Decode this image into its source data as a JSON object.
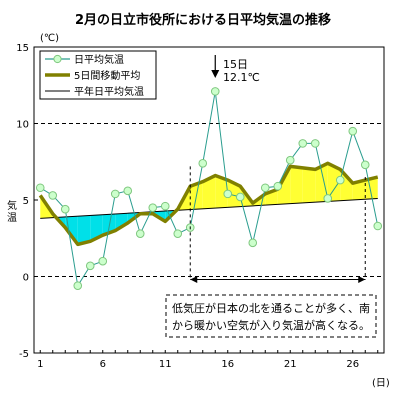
{
  "chart_data": {
    "type": "line",
    "title": "2月の日立市役所における日平均気温の推移",
    "y_unit": "(℃)",
    "x_unit": "(日)",
    "ylabel": "気温",
    "ylim": [
      -5,
      15
    ],
    "xlim": [
      0.5,
      28.5
    ],
    "y_ticks": [
      "-5",
      "0",
      "5",
      "10",
      "15"
    ],
    "x_ticks": [
      "1",
      "6",
      "11",
      "16",
      "21",
      "26"
    ],
    "x_tick_values": [
      1,
      6,
      11,
      16,
      21,
      26
    ],
    "y_tick_values": [
      -5,
      0,
      5,
      10,
      15
    ],
    "dashed_grid_y": [
      0,
      10
    ],
    "legend": [
      "日平均気温",
      "5日間移動平均",
      "平年日平均気温"
    ],
    "series": [
      {
        "name": "日平均気温",
        "color": "#2a9d8f",
        "marker_fill": "#ccffcc",
        "x": [
          1,
          2,
          3,
          4,
          5,
          6,
          7,
          8,
          9,
          10,
          11,
          12,
          13,
          14,
          15,
          16,
          17,
          18,
          19,
          20,
          21,
          22,
          23,
          24,
          25,
          26,
          27,
          28
        ],
        "values": [
          5.8,
          5.3,
          4.4,
          -0.6,
          0.7,
          1.0,
          5.4,
          5.6,
          2.8,
          4.5,
          4.6,
          2.8,
          3.2,
          7.4,
          12.1,
          5.4,
          5.2,
          2.2,
          5.8,
          5.9,
          7.6,
          8.7,
          8.7,
          5.1,
          6.3,
          9.5,
          7.3,
          3.3
        ]
      },
      {
        "name": "5日間移動平均",
        "color": "#808000",
        "x": [
          1,
          2,
          3,
          4,
          5,
          6,
          7,
          8,
          9,
          10,
          11,
          12,
          13,
          14,
          15,
          16,
          17,
          18,
          19,
          20,
          21,
          22,
          23,
          24,
          25,
          26,
          27,
          28
        ],
        "values": [
          5.3,
          4.1,
          3.2,
          2.1,
          2.3,
          2.7,
          3.0,
          3.5,
          4.1,
          4.1,
          3.6,
          4.4,
          5.9,
          6.2,
          6.6,
          6.3,
          5.9,
          4.8,
          5.4,
          5.7,
          7.2,
          7.1,
          7.0,
          7.4,
          7.0,
          6.1,
          6.3,
          6.5
        ]
      },
      {
        "name": "平年日平均気温",
        "color": "#000000",
        "x": [
          1,
          28
        ],
        "values": [
          3.8,
          5.1
        ]
      }
    ],
    "annotations": {
      "peak_day": "15日",
      "peak_value": "12.1℃",
      "peak_x": 15,
      "peak_y": 12.1,
      "span_start": 13,
      "span_end": 27,
      "span_y": -0.2,
      "note_line1": "低気圧が日本の北を通ることが多く、南",
      "note_line2": "から暖かい空気が入り気温が高くなる。"
    },
    "colors": {
      "above_normal_fill": "#ffff33",
      "below_normal_fill": "#00e0e8"
    }
  }
}
